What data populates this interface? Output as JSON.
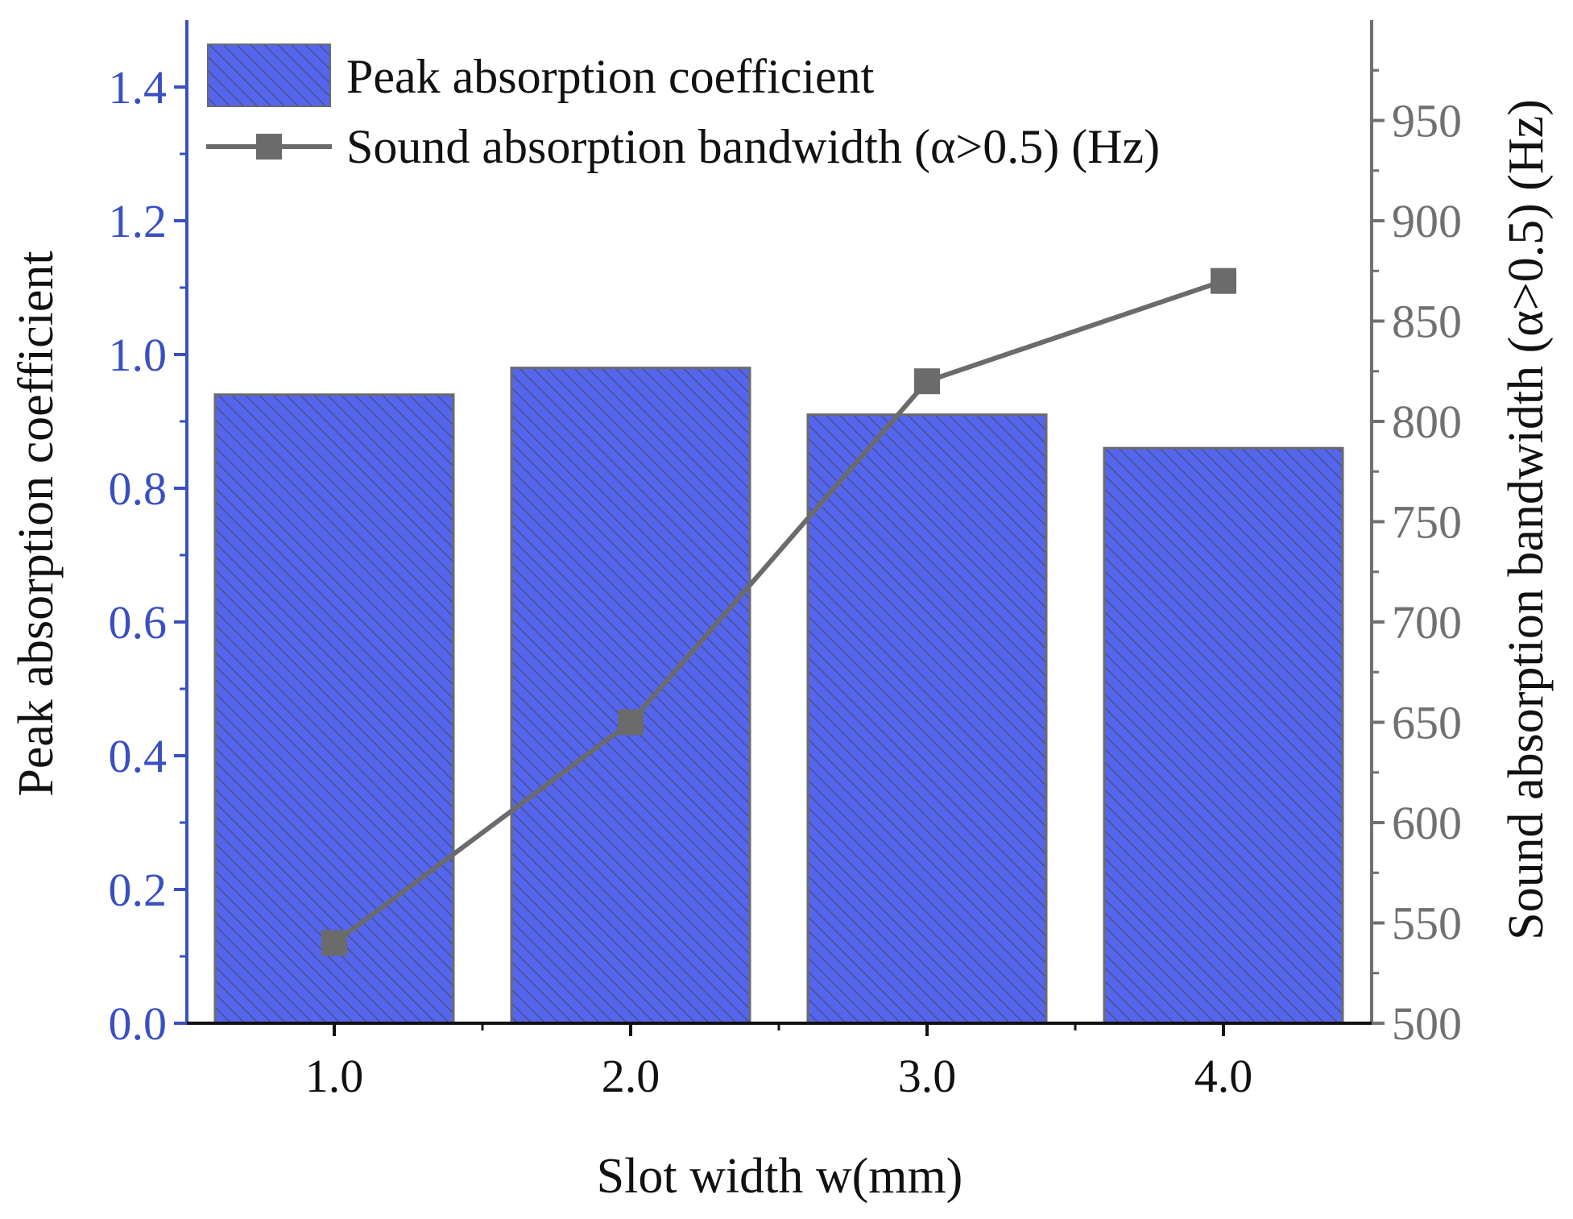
{
  "chart_data": {
    "type": "bar",
    "categories": [
      "1.0",
      "2.0",
      "3.0",
      "4.0"
    ],
    "series": [
      {
        "name": "Peak absorption coefficient",
        "type": "bar",
        "axis": "left",
        "values": [
          0.94,
          0.98,
          0.91,
          0.86
        ]
      },
      {
        "name": "Sound absorption bandwidth (α>0.5) (Hz)",
        "type": "line",
        "axis": "right",
        "values": [
          540,
          650,
          820,
          870
        ]
      }
    ],
    "xlabel": "Slot width w(mm)",
    "ylabel": "Peak absorption coefficient",
    "y2label": "Sound absorption bandwidth (α>0.5) (Hz)",
    "ylim": [
      0,
      1.5
    ],
    "y2lim": [
      500,
      1000
    ],
    "yticks": [
      "0.0",
      "0.2",
      "0.4",
      "0.6",
      "0.8",
      "1.0",
      "1.2",
      "1.4"
    ],
    "y2ticks": [
      "500",
      "550",
      "600",
      "650",
      "700",
      "750",
      "800",
      "850",
      "900",
      "950"
    ],
    "legend": "top-left",
    "colors": {
      "bar": "#5566ee",
      "hatch": "#4a4f8a",
      "line": "#6b6b6b",
      "left_axis": "#3a4fc0",
      "right_axis": "#707070"
    }
  }
}
